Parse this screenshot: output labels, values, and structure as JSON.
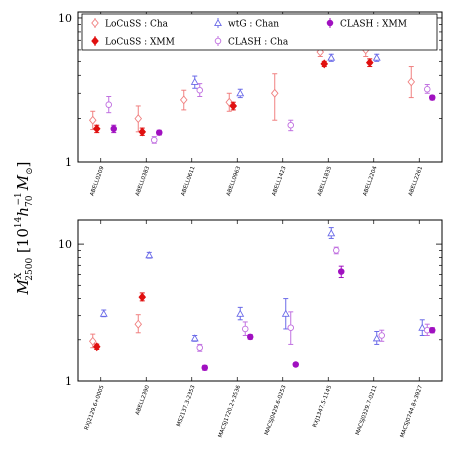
{
  "chart_data": {
    "type": "scatter",
    "y_axis_label": "M^X_2500 [10^14 h_70^-1 M_⊙]",
    "y_axis_label_parts": {
      "main": "M",
      "sup": "X",
      "sub": "2500",
      "bracket_open": "[10",
      "exp14": "14",
      "h": "h",
      "hsub": "70",
      "hsup": "−1",
      "msun": "M",
      "sun": "⊙",
      "bracket_close": "]"
    },
    "scale": "log",
    "legend": {
      "placement": "top-right-inside-top-panel",
      "entries": [
        {
          "key": "locuss_cha",
          "label": "LoCuSS : Cha",
          "color": "#f08080",
          "marker": "diamond-open"
        },
        {
          "key": "locuss_xmm",
          "label": "LoCuSS : XMM",
          "color": "#e01010",
          "marker": "diamond-filled"
        },
        {
          "key": "wtg_chan",
          "label": "wtG : Chan",
          "color": "#6a6ae8",
          "marker": "triangle-open"
        },
        {
          "key": "clash_cha",
          "label": "CLASH : Cha",
          "color": "#c070e0",
          "marker": "circle-open"
        },
        {
          "key": "clash_xmm",
          "label": "CLASH : XMM",
          "color": "#a010c0",
          "marker": "circle-filled"
        }
      ]
    },
    "panels": [
      {
        "ylim": [
          1,
          11
        ],
        "yticks": [
          {
            "v": 1,
            "label": "1"
          },
          {
            "v": 10,
            "label": "10"
          }
        ],
        "categories": [
          "ABELL0209",
          "ABELL0383",
          "ABELL0611",
          "ABELL0963",
          "ABELL1423",
          "ABELL1835",
          "ABELL2204",
          "ABELL2261"
        ],
        "points": [
          {
            "cat": 0,
            "key": "locuss_cha",
            "y": 1.95,
            "lo": 1.68,
            "hi": 2.25
          },
          {
            "cat": 0,
            "key": "locuss_xmm",
            "y": 1.7,
            "lo": 1.6,
            "hi": 1.8
          },
          {
            "cat": 0,
            "key": "clash_cha",
            "y": 2.5,
            "lo": 2.2,
            "hi": 2.85
          },
          {
            "cat": 0,
            "key": "clash_xmm",
            "y": 1.7,
            "lo": 1.6,
            "hi": 1.8
          },
          {
            "cat": 1,
            "key": "locuss_cha",
            "y": 2.0,
            "lo": 1.62,
            "hi": 2.45
          },
          {
            "cat": 1,
            "key": "locuss_xmm",
            "y": 1.62,
            "lo": 1.53,
            "hi": 1.72
          },
          {
            "cat": 1,
            "key": "clash_cha",
            "y": 1.42,
            "lo": 1.35,
            "hi": 1.5
          },
          {
            "cat": 1,
            "key": "clash_xmm",
            "y": 1.6,
            "lo": 1.54,
            "hi": 1.66
          },
          {
            "cat": 2,
            "key": "locuss_cha",
            "y": 2.7,
            "lo": 2.3,
            "hi": 3.15
          },
          {
            "cat": 2,
            "key": "wtg_chan",
            "y": 3.6,
            "lo": 3.25,
            "hi": 3.95
          },
          {
            "cat": 2,
            "key": "clash_cha",
            "y": 3.15,
            "lo": 2.85,
            "hi": 3.5
          },
          {
            "cat": 3,
            "key": "locuss_cha",
            "y": 2.6,
            "lo": 2.25,
            "hi": 3.0
          },
          {
            "cat": 3,
            "key": "locuss_xmm",
            "y": 2.45,
            "lo": 2.3,
            "hi": 2.6
          },
          {
            "cat": 3,
            "key": "wtg_chan",
            "y": 3.0,
            "lo": 2.8,
            "hi": 3.2
          },
          {
            "cat": 4,
            "key": "locuss_cha",
            "y": 3.0,
            "lo": 1.95,
            "hi": 4.1
          },
          {
            "cat": 4,
            "key": "clash_cha",
            "y": 1.8,
            "lo": 1.65,
            "hi": 1.95
          },
          {
            "cat": 5,
            "key": "locuss_cha",
            "y": 5.8,
            "lo": 5.4,
            "hi": 6.25
          },
          {
            "cat": 5,
            "key": "locuss_xmm",
            "y": 4.8,
            "lo": 4.6,
            "hi": 5.0
          },
          {
            "cat": 5,
            "key": "wtg_chan",
            "y": 5.3,
            "lo": 5.0,
            "hi": 5.6
          },
          {
            "cat": 6,
            "key": "locuss_cha",
            "y": 6.0,
            "lo": 5.4,
            "hi": 6.8
          },
          {
            "cat": 6,
            "key": "locuss_xmm",
            "y": 4.9,
            "lo": 4.6,
            "hi": 5.2
          },
          {
            "cat": 6,
            "key": "wtg_chan",
            "y": 5.3,
            "lo": 5.0,
            "hi": 5.6
          },
          {
            "cat": 7,
            "key": "locuss_cha",
            "y": 3.6,
            "lo": 2.8,
            "hi": 4.6
          },
          {
            "cat": 7,
            "key": "clash_cha",
            "y": 3.2,
            "lo": 3.0,
            "hi": 3.45
          },
          {
            "cat": 7,
            "key": "clash_xmm",
            "y": 2.8,
            "lo": 2.7,
            "hi": 2.9
          }
        ]
      },
      {
        "ylim": [
          1,
          15
        ],
        "yticks": [
          {
            "v": 1,
            "label": "1"
          },
          {
            "v": 10,
            "label": "10"
          }
        ],
        "categories": [
          "RXJ2129.6+0005",
          "ABELL2390",
          "MS2137.3-2353",
          "MACSJ1720.2+3536",
          "MACSJ0429.6-0253",
          "RXJ1347.5-1145",
          "MACSJ0329.7-0211",
          "MACSJ0744.8+3927"
        ],
        "points": [
          {
            "cat": 0,
            "key": "locuss_cha",
            "y": 1.95,
            "lo": 1.75,
            "hi": 2.2
          },
          {
            "cat": 0,
            "key": "locuss_xmm",
            "y": 1.78,
            "lo": 1.7,
            "hi": 1.86
          },
          {
            "cat": 0,
            "key": "wtg_chan",
            "y": 3.1,
            "lo": 2.95,
            "hi": 3.3
          },
          {
            "cat": 1,
            "key": "locuss_cha",
            "y": 2.6,
            "lo": 2.25,
            "hi": 3.05
          },
          {
            "cat": 1,
            "key": "locuss_xmm",
            "y": 4.1,
            "lo": 3.85,
            "hi": 4.4
          },
          {
            "cat": 1,
            "key": "wtg_chan",
            "y": 8.3,
            "lo": 7.9,
            "hi": 8.7
          },
          {
            "cat": 2,
            "key": "wtg_chan",
            "y": 2.05,
            "lo": 1.95,
            "hi": 2.15
          },
          {
            "cat": 2,
            "key": "clash_cha",
            "y": 1.75,
            "lo": 1.65,
            "hi": 1.85
          },
          {
            "cat": 2,
            "key": "clash_xmm",
            "y": 1.25,
            "lo": 1.2,
            "hi": 1.3
          },
          {
            "cat": 3,
            "key": "wtg_chan",
            "y": 3.1,
            "lo": 2.8,
            "hi": 3.45
          },
          {
            "cat": 3,
            "key": "clash_cha",
            "y": 2.4,
            "lo": 2.15,
            "hi": 2.7
          },
          {
            "cat": 3,
            "key": "clash_xmm",
            "y": 2.1,
            "lo": 2.02,
            "hi": 2.18
          },
          {
            "cat": 4,
            "key": "wtg_chan",
            "y": 3.1,
            "lo": 2.4,
            "hi": 4.0
          },
          {
            "cat": 4,
            "key": "clash_cha",
            "y": 2.45,
            "lo": 1.85,
            "hi": 3.2
          },
          {
            "cat": 4,
            "key": "clash_xmm",
            "y": 1.32,
            "lo": 1.28,
            "hi": 1.36
          },
          {
            "cat": 5,
            "key": "wtg_chan",
            "y": 12.0,
            "lo": 11.0,
            "hi": 13.2
          },
          {
            "cat": 5,
            "key": "clash_cha",
            "y": 9.0,
            "lo": 8.5,
            "hi": 9.5
          },
          {
            "cat": 5,
            "key": "clash_xmm",
            "y": 6.3,
            "lo": 5.7,
            "hi": 6.9
          },
          {
            "cat": 6,
            "key": "wtg_chan",
            "y": 2.05,
            "lo": 1.85,
            "hi": 2.3
          },
          {
            "cat": 6,
            "key": "clash_cha",
            "y": 2.15,
            "lo": 1.95,
            "hi": 2.35
          },
          {
            "cat": 7,
            "key": "wtg_chan",
            "y": 2.45,
            "lo": 2.15,
            "hi": 2.8
          },
          {
            "cat": 7,
            "key": "clash_cha",
            "y": 2.35,
            "lo": 2.15,
            "hi": 2.6
          },
          {
            "cat": 7,
            "key": "clash_xmm",
            "y": 2.35,
            "lo": 2.25,
            "hi": 2.45
          }
        ]
      }
    ]
  }
}
